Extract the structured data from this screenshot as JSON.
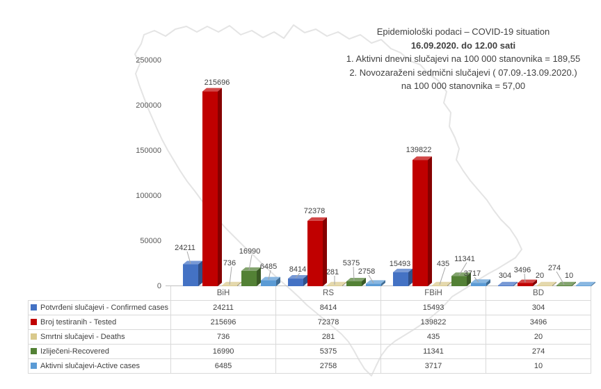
{
  "title_block": {
    "line1": "Epidemiološki podaci – COVID-19 situation",
    "line2": "16.09.2020. do 12.00 sati",
    "line3": "1. Aktivni dnevni slučajevi na 100 000 stanovnika = 189,55",
    "line4": "2. Novozaraženi sedmični slučajevi ( 07.09.-13.09.2020.)",
    "line5": "na 100 000 stanovnika = 57,00"
  },
  "chart_data": {
    "type": "bar",
    "bar_style": "3d-clustered",
    "categories": [
      "BiH",
      "RS",
      "FBiH",
      "BD"
    ],
    "series": [
      {
        "name": "Potvrđeni slučajevi - Confirmed cases",
        "color": "#4472C4",
        "values": [
          24211,
          8414,
          15493,
          304
        ]
      },
      {
        "name": "Broj testiranih - Tested",
        "color": "#C00000",
        "values": [
          215696,
          72378,
          139822,
          3496
        ]
      },
      {
        "name": "Smrtni slučajevi - Deaths",
        "color": "#D9C98C",
        "values": [
          736,
          281,
          435,
          20
        ]
      },
      {
        "name": "Izliječeni-Recovered",
        "color": "#538135",
        "values": [
          16990,
          5375,
          11341,
          274
        ]
      },
      {
        "name": "Aktivni slučajevi-Active cases",
        "color": "#5B9BD5",
        "values": [
          6485,
          2758,
          3717,
          10
        ]
      }
    ],
    "title": "Epidemiološki podaci – COVID-19 situation",
    "xlabel": "",
    "ylabel": "",
    "ylim": [
      0,
      250000
    ],
    "ytick_interval": 50000,
    "yticks": [
      "250000",
      "200000",
      "150000",
      "100000",
      "50000",
      "0"
    ],
    "grid": false,
    "legend_position": "table-left",
    "axis_color": "#BFBFBF",
    "label_color": "#404040",
    "map_outline_color": "#E4E4E4"
  }
}
